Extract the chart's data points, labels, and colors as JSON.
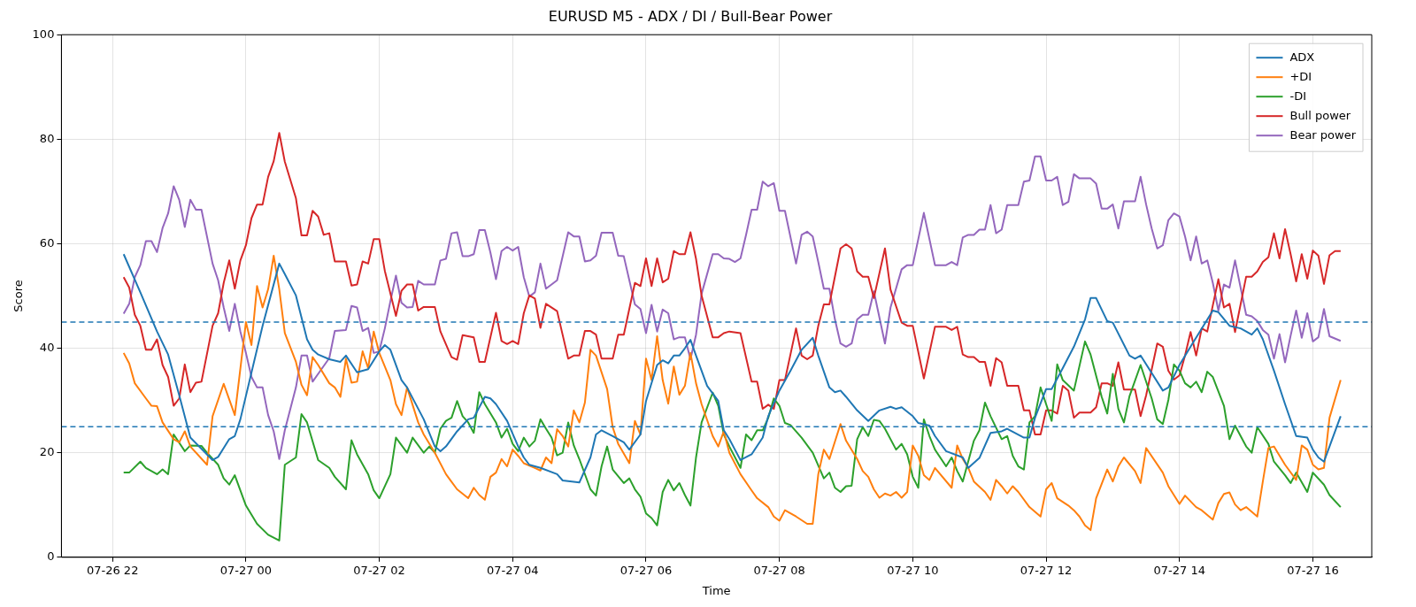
{
  "chart_data": {
    "type": "line",
    "title": "EURUSD M5 - ADX / DI / Bull-Bear Power",
    "xlabel": "Time",
    "ylabel": "Score",
    "xlim": [
      "--07-26T21:14",
      "--07-27T16:53"
    ],
    "xticks": [
      {
        "value": "--07-26T22:00",
        "label": "07-26 22"
      },
      {
        "value": "--07-27T00:00",
        "label": "07-27 00"
      },
      {
        "value": "--07-27T02:00",
        "label": "07-27 02"
      },
      {
        "value": "--07-27T04:00",
        "label": "07-27 04"
      },
      {
        "value": "--07-27T06:00",
        "label": "07-27 06"
      },
      {
        "value": "--07-27T08:00",
        "label": "07-27 08"
      },
      {
        "value": "--07-27T10:00",
        "label": "07-27 10"
      },
      {
        "value": "--07-27T12:00",
        "label": "07-27 12"
      },
      {
        "value": "--07-27T14:00",
        "label": "07-27 14"
      },
      {
        "value": "--07-27T16:00",
        "label": "07-27 16"
      }
    ],
    "ylim": [
      0,
      100
    ],
    "yticks": [
      0,
      20,
      40,
      60,
      80,
      100
    ],
    "grid": true,
    "legend": "top right",
    "ref_lines": [
      {
        "axis": "y",
        "value": 45,
        "color": "#1f77b4",
        "line_style": "dashed"
      },
      {
        "axis": "y",
        "value": 25,
        "color": "#1f77b4",
        "line_style": "dashed"
      }
    ],
    "series": [
      {
        "name": "ADX",
        "color": "#1f77b4",
        "x": [
          "--07-26T22:10",
          "--07-26T22:25",
          "--07-26T22:40",
          "--07-26T22:50",
          "--07-26T23:00",
          "--07-26T23:10",
          "--07-26T23:30",
          "--07-26T23:35",
          "--07-26T23:45",
          "--07-26T23:50",
          "--07-26T23:55",
          "--07-27T00:15",
          "--07-27T00:30",
          "--07-27T00:35",
          "--07-27T00:45",
          "--07-27T00:55",
          "--07-27T01:00",
          "--07-27T01:05",
          "--07-27T01:15",
          "--07-27T01:25",
          "--07-27T01:30",
          "--07-27T01:40",
          "--07-27T01:50",
          "--07-27T02:00",
          "--07-27T02:05",
          "--07-27T02:10",
          "--07-27T02:20",
          "--07-27T02:25",
          "--07-27T02:40",
          "--07-27T02:50",
          "--07-27T02:55",
          "--07-27T03:00",
          "--07-27T03:10",
          "--07-27T03:20",
          "--07-27T03:25",
          "--07-27T03:35",
          "--07-27T03:40",
          "--07-27T03:45",
          "--07-27T03:55",
          "--07-27T04:05",
          "--07-27T04:10",
          "--07-27T04:15",
          "--07-27T04:25",
          "--07-27T04:40",
          "--07-27T04:45",
          "--07-27T05:00",
          "--07-27T05:10",
          "--07-27T05:15",
          "--07-27T05:20",
          "--07-27T05:30",
          "--07-27T05:40",
          "--07-27T05:45",
          "--07-27T05:55",
          "--07-27T06:00",
          "--07-27T06:10",
          "--07-27T06:15",
          "--07-27T06:20",
          "--07-27T06:25",
          "--07-27T06:30",
          "--07-27T06:35",
          "--07-27T06:40",
          "--07-27T06:45",
          "--07-27T06:55",
          "--07-27T07:05",
          "--07-27T07:10",
          "--07-27T07:15",
          "--07-27T07:20",
          "--07-27T07:25",
          "--07-27T07:35",
          "--07-27T07:45",
          "--07-27T07:50",
          "--07-27T08:00",
          "--07-27T08:10",
          "--07-27T08:20",
          "--07-27T08:30",
          "--07-27T08:35",
          "--07-27T08:45",
          "--07-27T08:50",
          "--07-27T08:55",
          "--07-27T09:00",
          "--07-27T09:10",
          "--07-27T09:20",
          "--07-27T09:30",
          "--07-27T09:40",
          "--07-27T09:45",
          "--07-27T09:50",
          "--07-27T10:00",
          "--07-27T10:05",
          "--07-27T10:15",
          "--07-27T10:20",
          "--07-27T10:30",
          "--07-27T10:45",
          "--07-27T10:50",
          "--07-27T11:00",
          "--07-27T11:10",
          "--07-27T11:20",
          "--07-27T11:25",
          "--07-27T11:40",
          "--07-27T11:45",
          "--07-27T11:50",
          "--07-27T12:00",
          "--07-27T12:05",
          "--07-27T12:15",
          "--07-27T12:25",
          "--07-27T12:35",
          "--07-27T12:40",
          "--07-27T12:45",
          "--07-27T12:55",
          "--07-27T13:00",
          "--07-27T13:15",
          "--07-27T13:20",
          "--07-27T13:25",
          "--07-27T13:45",
          "--07-27T13:50",
          "--07-27T14:00",
          "--07-27T14:10",
          "--07-27T14:30",
          "--07-27T14:35",
          "--07-27T14:45",
          "--07-27T14:55",
          "--07-27T15:05",
          "--07-27T15:10",
          "--07-27T15:15",
          "--07-27T15:25",
          "--07-27T15:35",
          "--07-27T15:45",
          "--07-27T15:55",
          "--07-27T16:00",
          "--07-27T16:05",
          "--07-27T16:10",
          "--07-27T16:15",
          "--07-27T16:25"
        ],
        "values": [
          58.0,
          50.7,
          43.2,
          38.8,
          31.0,
          22.9,
          18.6,
          19.2,
          22.6,
          23.2,
          26.4,
          44.3,
          56.2,
          54.2,
          50.1,
          41.7,
          39.7,
          38.8,
          37.9,
          37.4,
          38.6,
          35.4,
          36.0,
          39.4,
          40.6,
          39.7,
          33.9,
          32.5,
          26.4,
          21.2,
          20.3,
          21.2,
          24.1,
          26.4,
          26.7,
          30.7,
          30.4,
          29.3,
          26.1,
          21.2,
          19.1,
          17.7,
          17.1,
          15.9,
          14.7,
          14.3,
          19.1,
          23.5,
          24.3,
          23.2,
          22.0,
          20.6,
          23.5,
          29.9,
          36.8,
          37.7,
          37.1,
          38.6,
          38.6,
          40.0,
          41.6,
          38.6,
          32.8,
          29.9,
          24.3,
          22.6,
          20.6,
          18.6,
          19.7,
          22.9,
          27.0,
          31.9,
          35.7,
          39.7,
          42.0,
          38.6,
          32.5,
          31.6,
          31.9,
          30.7,
          28.1,
          26.1,
          28.1,
          28.8,
          28.4,
          28.7,
          27.0,
          25.7,
          25.2,
          23.2,
          20.3,
          19.1,
          17.1,
          19.0,
          23.8,
          24.1,
          24.6,
          22.9,
          22.9,
          26.7,
          32.2,
          32.2,
          36.2,
          40.3,
          45.5,
          49.6,
          49.6,
          45.2,
          44.9,
          38.6,
          38.0,
          38.6,
          31.9,
          32.5,
          36.8,
          40.3,
          47.2,
          46.9,
          44.3,
          43.8,
          42.6,
          43.8,
          41.7,
          35.7,
          29.3,
          23.2,
          22.9,
          20.6,
          19.1,
          18.3,
          21.2,
          27.0
        ]
      },
      {
        "name": "+DI",
        "color": "#ff7f0e",
        "x": [
          "--07-26T22:10",
          "--07-26T22:15",
          "--07-26T22:20",
          "--07-26T22:30",
          "--07-26T22:35",
          "--07-26T22:40",
          "--07-26T22:45",
          "--07-26T22:55",
          "--07-26T23:00",
          "--07-26T23:05",
          "--07-26T23:10",
          "--07-26T23:25",
          "--07-26T23:30",
          "--07-26T23:40",
          "--07-26T23:50",
          "--07-27T00:00",
          "--07-27T00:05",
          "--07-27T00:10",
          "--07-27T00:15",
          "--07-27T00:20",
          "--07-27T00:25",
          "--07-27T00:30",
          "--07-27T00:35",
          "--07-27T00:45",
          "--07-27T00:50",
          "--07-27T00:55",
          "--07-27T01:00",
          "--07-27T01:05",
          "--07-27T01:15",
          "--07-27T01:20",
          "--07-27T01:25",
          "--07-27T01:30",
          "--07-27T01:35",
          "--07-27T01:40",
          "--07-27T01:45",
          "--07-27T01:50",
          "--07-27T01:55",
          "--07-27T02:00",
          "--07-27T02:10",
          "--07-27T02:15",
          "--07-27T02:20",
          "--07-27T02:25",
          "--07-27T02:35",
          "--07-27T02:40",
          "--07-27T02:50",
          "--07-27T03:00",
          "--07-27T03:10",
          "--07-27T03:20",
          "--07-27T03:25",
          "--07-27T03:30",
          "--07-27T03:35",
          "--07-27T03:40",
          "--07-27T03:45",
          "--07-27T03:50",
          "--07-27T03:55",
          "--07-27T04:00",
          "--07-27T04:05",
          "--07-27T04:10",
          "--07-27T04:20",
          "--07-27T04:25",
          "--07-27T04:30",
          "--07-27T04:35",
          "--07-27T04:40",
          "--07-27T04:45",
          "--07-27T04:50",
          "--07-27T04:55",
          "--07-27T05:00",
          "--07-27T05:05",
          "--07-27T05:10",
          "--07-27T05:15",
          "--07-27T05:25",
          "--07-27T05:30",
          "--07-27T05:35",
          "--07-27T05:45",
          "--07-27T05:50",
          "--07-27T05:55",
          "--07-27T06:00",
          "--07-27T06:05",
          "--07-27T06:10",
          "--07-27T06:15",
          "--07-27T06:20",
          "--07-27T06:25",
          "--07-27T06:30",
          "--07-27T06:35",
          "--07-27T06:40",
          "--07-27T06:45",
          "--07-27T06:50",
          "--07-27T07:00",
          "--07-27T07:05",
          "--07-27T07:10",
          "--07-27T07:15",
          "--07-27T07:25",
          "--07-27T07:35",
          "--07-27T07:40",
          "--07-27T07:50",
          "--07-27T07:55",
          "--07-27T08:00",
          "--07-27T08:05",
          "--07-27T08:15",
          "--07-27T08:25",
          "--07-27T08:30",
          "--07-27T08:35",
          "--07-27T08:40",
          "--07-27T08:45",
          "--07-27T08:55",
          "--07-27T09:00",
          "--07-27T09:10",
          "--07-27T09:15",
          "--07-27T09:20",
          "--07-27T09:25",
          "--07-27T09:30",
          "--07-27T09:35",
          "--07-27T09:40",
          "--07-27T09:45",
          "--07-27T09:50",
          "--07-27T09:55",
          "--07-27T10:00",
          "--07-27T10:05",
          "--07-27T10:10",
          "--07-27T10:15",
          "--07-27T10:20",
          "--07-27T10:35",
          "--07-27T10:40",
          "--07-27T10:45",
          "--07-27T10:50",
          "--07-27T10:55",
          "--07-27T11:05",
          "--07-27T11:10",
          "--07-27T11:15",
          "--07-27T11:20",
          "--07-27T11:25",
          "--07-27T11:30",
          "--07-27T11:35",
          "--07-27T11:45",
          "--07-27T11:55",
          "--07-27T12:00",
          "--07-27T12:05",
          "--07-27T12:10",
          "--07-27T12:20",
          "--07-27T12:25",
          "--07-27T12:30",
          "--07-27T12:35",
          "--07-27T12:40",
          "--07-27T12:45",
          "--07-27T12:55",
          "--07-27T13:00",
          "--07-27T13:05",
          "--07-27T13:10",
          "--07-27T13:20",
          "--07-27T13:25",
          "--07-27T13:30",
          "--07-27T13:45",
          "--07-27T13:50",
          "--07-27T14:00",
          "--07-27T14:05",
          "--07-27T14:15",
          "--07-27T14:20",
          "--07-27T14:30",
          "--07-27T14:35",
          "--07-27T14:40",
          "--07-27T14:45",
          "--07-27T14:50",
          "--07-27T14:55",
          "--07-27T15:00",
          "--07-27T15:10",
          "--07-27T15:15",
          "--07-27T15:20",
          "--07-27T15:25",
          "--07-27T15:35",
          "--07-27T15:45",
          "--07-27T15:50",
          "--07-27T15:55",
          "--07-27T16:00",
          "--07-27T16:05",
          "--07-27T16:10",
          "--07-27T16:15",
          "--07-27T16:25"
        ],
        "values": [
          39.1,
          37.1,
          33.3,
          30.4,
          29.0,
          28.9,
          25.8,
          22.6,
          22.0,
          24.1,
          21.2,
          17.7,
          27.0,
          33.2,
          27.2,
          45.0,
          40.6,
          51.9,
          47.8,
          51.3,
          57.7,
          51.3,
          42.9,
          37.4,
          33.0,
          31.0,
          38.3,
          36.8,
          33.3,
          32.5,
          30.7,
          38.0,
          33.4,
          33.6,
          39.4,
          36.2,
          43.2,
          39.1,
          33.9,
          29.3,
          27.2,
          32.5,
          25.8,
          23.5,
          20.0,
          15.9,
          13.0,
          11.3,
          13.3,
          11.9,
          11.0,
          15.4,
          16.2,
          18.8,
          17.4,
          20.6,
          19.4,
          18.0,
          17.1,
          16.6,
          19.1,
          18.0,
          24.5,
          23.2,
          21.2,
          28.1,
          25.8,
          29.6,
          39.7,
          38.6,
          32.2,
          24.9,
          21.7,
          18.0,
          26.1,
          23.5,
          38.0,
          33.9,
          42.3,
          33.9,
          29.4,
          36.5,
          31.1,
          32.8,
          39.1,
          33.3,
          29.3,
          23.2,
          21.2,
          24.1,
          20.0,
          15.9,
          12.8,
          11.3,
          9.6,
          7.8,
          7.0,
          9.0,
          7.8,
          6.4,
          6.4,
          15.9,
          20.6,
          18.8,
          25.5,
          22.3,
          18.8,
          16.5,
          15.4,
          13.0,
          11.4,
          12.2,
          11.8,
          12.5,
          11.4,
          12.5,
          21.4,
          19.4,
          15.7,
          14.8,
          17.1,
          13.3,
          21.4,
          18.8,
          17.1,
          14.5,
          12.5,
          11.0,
          14.8,
          13.6,
          12.2,
          13.6,
          12.5,
          9.6,
          7.8,
          13.0,
          14.2,
          11.3,
          9.9,
          9.0,
          7.8,
          6.1,
          5.2,
          11.3,
          16.8,
          14.5,
          17.4,
          19.1,
          16.5,
          14.2,
          20.9,
          16.2,
          13.6,
          10.2,
          11.8,
          9.6,
          9.0,
          7.2,
          10.4,
          12.1,
          12.4,
          10.1,
          9.0,
          9.6,
          7.8,
          14.5,
          20.9,
          21.2,
          17.7,
          14.8,
          21.4,
          20.6,
          17.7,
          16.8,
          17.1,
          26.7,
          33.9
        ]
      },
      {
        "name": "-DI",
        "color": "#2ca02c",
        "x": [
          "--07-26T22:10",
          "--07-26T22:15",
          "--07-26T22:25",
          "--07-26T22:30",
          "--07-26T22:40",
          "--07-26T22:45",
          "--07-26T22:50",
          "--07-26T22:55",
          "--07-26T23:05",
          "--07-26T23:10",
          "--07-26T23:20",
          "--07-26T23:25",
          "--07-26T23:35",
          "--07-26T23:40",
          "--07-26T23:45",
          "--07-26T23:50",
          "--07-27T00:00",
          "--07-27T00:10",
          "--07-27T00:20",
          "--07-27T00:30",
          "--07-27T00:35",
          "--07-27T00:45",
          "--07-27T00:50",
          "--07-27T00:55",
          "--07-27T01:05",
          "--07-27T01:15",
          "--07-27T01:20",
          "--07-27T01:30",
          "--07-27T01:35",
          "--07-27T01:40",
          "--07-27T01:50",
          "--07-27T01:55",
          "--07-27T02:00",
          "--07-27T02:10",
          "--07-27T02:15",
          "--07-27T02:25",
          "--07-27T02:30",
          "--07-27T02:40",
          "--07-27T02:45",
          "--07-27T02:50",
          "--07-27T02:55",
          "--07-27T03:00",
          "--07-27T03:05",
          "--07-27T03:10",
          "--07-27T03:15",
          "--07-27T03:20",
          "--07-27T03:25",
          "--07-27T03:30",
          "--07-27T03:35",
          "--07-27T03:45",
          "--07-27T03:50",
          "--07-27T03:55",
          "--07-27T04:00",
          "--07-27T04:05",
          "--07-27T04:10",
          "--07-27T04:15",
          "--07-27T04:20",
          "--07-27T04:25",
          "--07-27T04:30",
          "--07-27T04:35",
          "--07-27T04:40",
          "--07-27T04:45",
          "--07-27T04:50",
          "--07-27T04:55",
          "--07-27T05:00",
          "--07-27T05:10",
          "--07-27T05:15",
          "--07-27T05:20",
          "--07-27T05:25",
          "--07-27T05:30",
          "--07-27T05:40",
          "--07-27T05:45",
          "--07-27T05:50",
          "--07-27T05:55",
          "--07-27T06:00",
          "--07-27T06:05",
          "--07-27T06:10",
          "--07-27T06:15",
          "--07-27T06:20",
          "--07-27T06:25",
          "--07-27T06:30",
          "--07-27T06:35",
          "--07-27T06:40",
          "--07-27T06:45",
          "--07-27T06:50",
          "--07-27T07:00",
          "--07-27T07:05",
          "--07-27T07:10",
          "--07-27T07:15",
          "--07-27T07:25",
          "--07-27T07:30",
          "--07-27T07:35",
          "--07-27T07:40",
          "--07-27T07:45",
          "--07-27T07:50",
          "--07-27T07:55",
          "--07-27T08:00",
          "--07-27T08:05",
          "--07-27T08:10",
          "--07-27T08:20",
          "--07-27T08:30",
          "--07-27T08:40",
          "--07-27T08:45",
          "--07-27T08:50",
          "--07-27T08:55",
          "--07-27T09:00",
          "--07-27T09:05",
          "--07-27T09:10",
          "--07-27T09:15",
          "--07-27T09:20",
          "--07-27T09:25",
          "--07-27T09:30",
          "--07-27T09:35",
          "--07-27T09:45",
          "--07-27T09:50",
          "--07-27T09:55",
          "--07-27T10:00",
          "--07-27T10:05",
          "--07-27T10:10",
          "--07-27T10:15",
          "--07-27T10:20",
          "--07-27T10:30",
          "--07-27T10:35",
          "--07-27T10:40",
          "--07-27T10:45",
          "--07-27T10:55",
          "--07-27T11:00",
          "--07-27T11:05",
          "--07-27T11:10",
          "--07-27T11:20",
          "--07-27T11:25",
          "--07-27T11:30",
          "--07-27T11:35",
          "--07-27T11:40",
          "--07-27T11:45",
          "--07-27T11:50",
          "--07-27T11:55",
          "--07-27T12:00",
          "--07-27T12:05",
          "--07-27T12:10",
          "--07-27T12:15",
          "--07-27T12:25",
          "--07-27T12:35",
          "--07-27T12:40",
          "--07-27T12:50",
          "--07-27T12:55",
          "--07-27T13:00",
          "--07-27T13:05",
          "--07-27T13:10",
          "--07-27T13:15",
          "--07-27T13:25",
          "--07-27T13:35",
          "--07-27T13:40",
          "--07-27T13:45",
          "--07-27T13:50",
          "--07-27T13:55",
          "--07-27T14:00",
          "--07-27T14:05",
          "--07-27T14:10",
          "--07-27T14:15",
          "--07-27T14:20",
          "--07-27T14:25",
          "--07-27T14:30",
          "--07-27T14:40",
          "--07-27T14:45",
          "--07-27T14:50",
          "--07-27T15:00",
          "--07-27T15:05",
          "--07-27T15:10",
          "--07-27T15:20",
          "--07-27T15:25",
          "--07-27T15:35",
          "--07-27T15:40",
          "--07-27T15:45",
          "--07-27T15:55",
          "--07-27T16:00",
          "--07-27T16:10",
          "--07-27T16:15",
          "--07-27T16:25"
        ],
        "values": [
          16.2,
          16.2,
          18.3,
          17.1,
          15.9,
          16.8,
          15.9,
          23.5,
          20.3,
          21.4,
          21.3,
          20.0,
          17.7,
          15.1,
          13.9,
          15.7,
          9.9,
          6.4,
          4.3,
          3.2,
          17.7,
          19.1,
          27.4,
          25.8,
          18.6,
          17.1,
          15.4,
          13.0,
          22.4,
          19.7,
          15.9,
          12.8,
          11.3,
          15.9,
          22.9,
          20.0,
          22.9,
          20.0,
          21.2,
          20.0,
          24.6,
          26.1,
          26.7,
          29.9,
          27.0,
          25.8,
          23.8,
          31.6,
          29.3,
          25.8,
          22.9,
          24.6,
          21.7,
          20.3,
          22.9,
          21.2,
          22.3,
          26.4,
          24.6,
          22.9,
          19.5,
          20.0,
          25.8,
          21.4,
          18.8,
          13.0,
          11.8,
          17.4,
          21.2,
          16.8,
          14.2,
          15.1,
          13.0,
          11.6,
          8.4,
          7.5,
          6.1,
          12.5,
          14.8,
          12.8,
          14.2,
          11.9,
          9.9,
          19.1,
          25.8,
          31.5,
          29.0,
          23.5,
          21.2,
          17.1,
          23.5,
          22.4,
          24.3,
          24.3,
          26.7,
          30.4,
          29.0,
          25.7,
          25.3,
          22.9,
          20.0,
          15.1,
          16.2,
          13.3,
          12.5,
          13.6,
          13.7,
          22.6,
          24.9,
          23.2,
          26.3,
          26.1,
          24.6,
          20.6,
          21.7,
          19.7,
          15.4,
          13.3,
          26.4,
          23.2,
          20.6,
          17.4,
          19.1,
          16.5,
          14.5,
          22.3,
          24.3,
          29.6,
          27.0,
          22.6,
          23.2,
          19.4,
          17.4,
          16.8,
          25.8,
          27.0,
          32.5,
          29.3,
          26.1,
          36.9,
          33.9,
          31.9,
          41.3,
          38.8,
          30.7,
          27.5,
          35.1,
          28.4,
          25.8,
          30.8,
          36.8,
          30.4,
          26.4,
          25.5,
          30.1,
          36.9,
          35.7,
          33.3,
          32.5,
          33.6,
          31.6,
          35.5,
          34.5,
          29.0,
          22.6,
          25.2,
          21.2,
          20.0,
          24.9,
          21.7,
          18.3,
          15.7,
          14.2,
          16.2,
          12.5,
          16.2,
          13.9,
          11.9,
          9.6
        ]
      },
      {
        "name": "Bull power",
        "color": "#d62728",
        "x": [
          "--07-26T22:10",
          "--07-26T22:15",
          "--07-26T22:20",
          "--07-26T22:25",
          "--07-26T22:30",
          "--07-26T22:35",
          "--07-26T22:40",
          "--07-26T22:45",
          "--07-26T22:50",
          "--07-26T22:55",
          "--07-26T23:00",
          "--07-26T23:05",
          "--07-26T23:10",
          "--07-26T23:15",
          "--07-26T23:20",
          "--07-26T23:30",
          "--07-26T23:35",
          "--07-26T23:40",
          "--07-26T23:45",
          "--07-26T23:50",
          "--07-26T23:55",
          "--07-27T00:00",
          "--07-27T00:05",
          "--07-27T00:10",
          "--07-27T00:15",
          "--07-27T00:20",
          "--07-27T00:25",
          "--07-27T00:30",
          "--07-27T00:35",
          "--07-27T00:45",
          "--07-27T00:50",
          "--07-27T00:55",
          "--07-27T01:00",
          "--07-27T01:05",
          "--07-27T01:10",
          "--07-27T01:15",
          "--07-27T01:20",
          "--07-27T01:30",
          "--07-27T01:35",
          "--07-27T01:40",
          "--07-27T01:45",
          "--07-27T01:50",
          "--07-27T01:55",
          "--07-27T02:00",
          "--07-27T02:05",
          "--07-27T02:15",
          "--07-27T02:20",
          "--07-27T02:25",
          "--07-27T02:30",
          "--07-27T02:35",
          "--07-27T02:40",
          "--07-27T02:50",
          "--07-27T02:55",
          "--07-27T03:05",
          "--07-27T03:10",
          "--07-27T03:15",
          "--07-27T03:25",
          "--07-27T03:30",
          "--07-27T03:35",
          "--07-27T03:45",
          "--07-27T03:50",
          "--07-27T03:55",
          "--07-27T04:00",
          "--07-27T04:05",
          "--07-27T04:10",
          "--07-27T04:15",
          "--07-27T04:20",
          "--07-27T04:25",
          "--07-27T04:30",
          "--07-27T04:40",
          "--07-27T04:50",
          "--07-27T04:55",
          "--07-27T05:00",
          "--07-27T05:05",
          "--07-27T05:10",
          "--07-27T05:15",
          "--07-27T05:20",
          "--07-27T05:30",
          "--07-27T05:35",
          "--07-27T05:40",
          "--07-27T05:50",
          "--07-27T05:55",
          "--07-27T06:00",
          "--07-27T06:05",
          "--07-27T06:10",
          "--07-27T06:15",
          "--07-27T06:20",
          "--07-27T06:25",
          "--07-27T06:30",
          "--07-27T06:35",
          "--07-27T06:40",
          "--07-27T06:45",
          "--07-27T06:50",
          "--07-27T07:00",
          "--07-27T07:05",
          "--07-27T07:10",
          "--07-27T07:15",
          "--07-27T07:25",
          "--07-27T07:35",
          "--07-27T07:40",
          "--07-27T07:45",
          "--07-27T07:50",
          "--07-27T07:55",
          "--07-27T08:00",
          "--07-27T08:05",
          "--07-27T08:15",
          "--07-27T08:20",
          "--07-27T08:25",
          "--07-27T08:30",
          "--07-27T08:35",
          "--07-27T08:40",
          "--07-27T08:45",
          "--07-27T08:55",
          "--07-27T09:00",
          "--07-27T09:05",
          "--07-27T09:10",
          "--07-27T09:15",
          "--07-27T09:20",
          "--07-27T09:25",
          "--07-27T09:35",
          "--07-27T09:40",
          "--07-27T09:50",
          "--07-27T09:55",
          "--07-27T10:00",
          "--07-27T10:10",
          "--07-27T10:20",
          "--07-27T10:30",
          "--07-27T10:35",
          "--07-27T10:40",
          "--07-27T10:45",
          "--07-27T10:50",
          "--07-27T10:55",
          "--07-27T11:00",
          "--07-27T11:05",
          "--07-27T11:10",
          "--07-27T11:15",
          "--07-27T11:20",
          "--07-27T11:25",
          "--07-27T11:35",
          "--07-27T11:40",
          "--07-27T11:45",
          "--07-27T11:50",
          "--07-27T11:55",
          "--07-27T12:00",
          "--07-27T12:05",
          "--07-27T12:10",
          "--07-27T12:15",
          "--07-27T12:20",
          "--07-27T12:25",
          "--07-27T12:30",
          "--07-27T12:40",
          "--07-27T12:45",
          "--07-27T12:50",
          "--07-27T12:55",
          "--07-27T13:00",
          "--07-27T13:05",
          "--07-27T13:10",
          "--07-27T13:20",
          "--07-27T13:25",
          "--07-27T13:30",
          "--07-27T13:40",
          "--07-27T13:45",
          "--07-27T13:50",
          "--07-27T13:55",
          "--07-27T14:00",
          "--07-27T14:05",
          "--07-27T14:10",
          "--07-27T14:15",
          "--07-27T14:20",
          "--07-27T14:25",
          "--07-27T14:35",
          "--07-27T14:40",
          "--07-27T14:45",
          "--07-27T14:50",
          "--07-27T15:00",
          "--07-27T15:05",
          "--07-27T15:10",
          "--07-27T15:15",
          "--07-27T15:20",
          "--07-27T15:25",
          "--07-27T15:30",
          "--07-27T15:35",
          "--07-27T15:40",
          "--07-27T15:45",
          "--07-27T15:50",
          "--07-27T15:55",
          "--07-27T16:00",
          "--07-27T16:05",
          "--07-27T16:10",
          "--07-27T16:15",
          "--07-27T16:20",
          "--07-27T16:25"
        ],
        "values": [
          53.6,
          51.6,
          46.4,
          44.3,
          39.7,
          39.7,
          41.7,
          36.8,
          34.5,
          29.0,
          30.4,
          36.9,
          31.6,
          33.4,
          33.6,
          44.3,
          46.7,
          52.5,
          56.8,
          51.4,
          56.8,
          59.7,
          64.9,
          67.5,
          67.5,
          72.8,
          75.8,
          81.2,
          75.7,
          68.7,
          61.6,
          61.6,
          66.3,
          65.2,
          61.7,
          62.0,
          56.6,
          56.6,
          52.0,
          52.2,
          56.6,
          56.2,
          60.9,
          60.9,
          54.8,
          46.2,
          51.0,
          52.2,
          52.2,
          47.2,
          47.9,
          47.9,
          43.2,
          38.3,
          37.8,
          42.5,
          42.1,
          37.4,
          37.4,
          46.8,
          41.4,
          40.8,
          41.4,
          40.8,
          46.7,
          50.1,
          49.5,
          43.9,
          48.5,
          47.1,
          38.0,
          38.6,
          38.6,
          43.3,
          43.3,
          42.6,
          38.0,
          38.0,
          42.6,
          42.6,
          52.5,
          51.9,
          57.2,
          51.9,
          57.2,
          52.6,
          53.3,
          58.6,
          58.0,
          58.0,
          62.2,
          57.1,
          50.1,
          42.1,
          42.1,
          42.9,
          43.2,
          42.9,
          33.6,
          33.6,
          28.4,
          29.2,
          28.4,
          33.9,
          33.9,
          43.8,
          38.6,
          37.9,
          38.6,
          44.3,
          48.4,
          48.4,
          59.1,
          59.9,
          59.1,
          54.7,
          53.7,
          53.7,
          49.6,
          59.1,
          51.2,
          44.9,
          44.3,
          44.3,
          34.2,
          44.1,
          44.1,
          43.5,
          44.1,
          38.8,
          38.3,
          38.3,
          37.4,
          37.4,
          32.8,
          38.1,
          37.3,
          32.8,
          32.8,
          28.1,
          28.1,
          23.5,
          23.5,
          28.1,
          28.1,
          27.5,
          32.8,
          31.9,
          26.7,
          27.7,
          27.7,
          28.7,
          33.3,
          33.3,
          32.8,
          37.3,
          32.1,
          32.1,
          27.0,
          31.0,
          40.9,
          40.3,
          35.7,
          34.0,
          34.8,
          38.6,
          43.1,
          38.6,
          43.8,
          43.2,
          53.2,
          47.8,
          48.5,
          43.1,
          53.7,
          53.7,
          54.7,
          56.5,
          57.4,
          62.0,
          57.2,
          62.8,
          58.0,
          52.8,
          58.0,
          53.3,
          58.7,
          57.7,
          52.3,
          57.8,
          58.6,
          58.6
        ]
      },
      {
        "name": "Bear power",
        "color": "#9467bd",
        "x": [
          "--07-26T22:10",
          "--07-26T22:15",
          "--07-26T22:20",
          "--07-26T22:25",
          "--07-26T22:30",
          "--07-26T22:35",
          "--07-26T22:40",
          "--07-26T22:45",
          "--07-26T22:50",
          "--07-26T22:55",
          "--07-26T23:00",
          "--07-26T23:05",
          "--07-26T23:10",
          "--07-26T23:15",
          "--07-26T23:20",
          "--07-26T23:30",
          "--07-26T23:35",
          "--07-26T23:40",
          "--07-26T23:45",
          "--07-26T23:50",
          "--07-26T23:55",
          "--07-27T00:00",
          "--07-27T00:05",
          "--07-27T00:10",
          "--07-27T00:15",
          "--07-27T00:20",
          "--07-27T00:25",
          "--07-27T00:30",
          "--07-27T00:35",
          "--07-27T00:45",
          "--07-27T00:50",
          "--07-27T00:55",
          "--07-27T01:00",
          "--07-27T01:05",
          "--07-27T01:15",
          "--07-27T01:20",
          "--07-27T01:30",
          "--07-27T01:35",
          "--07-27T01:40",
          "--07-27T01:45",
          "--07-27T01:50",
          "--07-27T01:55",
          "--07-27T02:00",
          "--07-27T02:05",
          "--07-27T02:10",
          "--07-27T02:15",
          "--07-27T02:20",
          "--07-27T02:25",
          "--07-27T02:30",
          "--07-27T02:35",
          "--07-27T02:40",
          "--07-27T02:50",
          "--07-27T02:55",
          "--07-27T03:00",
          "--07-27T03:05",
          "--07-27T03:10",
          "--07-27T03:15",
          "--07-27T03:20",
          "--07-27T03:25",
          "--07-27T03:30",
          "--07-27T03:35",
          "--07-27T03:40",
          "--07-27T03:45",
          "--07-27T03:50",
          "--07-27T03:55",
          "--07-27T04:00",
          "--07-27T04:05",
          "--07-27T04:10",
          "--07-27T04:15",
          "--07-27T04:20",
          "--07-27T04:25",
          "--07-27T04:30",
          "--07-27T04:40",
          "--07-27T04:50",
          "--07-27T04:55",
          "--07-27T05:00",
          "--07-27T05:05",
          "--07-27T05:10",
          "--07-27T05:15",
          "--07-27T05:20",
          "--07-27T05:30",
          "--07-27T05:35",
          "--07-27T05:40",
          "--07-27T05:50",
          "--07-27T05:55",
          "--07-27T06:00",
          "--07-27T06:05",
          "--07-27T06:10",
          "--07-27T06:15",
          "--07-27T06:20",
          "--07-27T06:25",
          "--07-27T06:30",
          "--07-27T06:35",
          "--07-27T06:40",
          "--07-27T06:45",
          "--07-27T06:50",
          "--07-27T07:00",
          "--07-27T07:05",
          "--07-27T07:10",
          "--07-27T07:15",
          "--07-27T07:20",
          "--07-27T07:25",
          "--07-27T07:30",
          "--07-27T07:35",
          "--07-27T07:40",
          "--07-27T07:45",
          "--07-27T07:50",
          "--07-27T07:55",
          "--07-27T08:00",
          "--07-27T08:05",
          "--07-27T08:15",
          "--07-27T08:20",
          "--07-27T08:25",
          "--07-27T08:30",
          "--07-27T08:35",
          "--07-27T08:40",
          "--07-27T08:45",
          "--07-27T08:50",
          "--07-27T08:55",
          "--07-27T09:00",
          "--07-27T09:05",
          "--07-27T09:10",
          "--07-27T09:15",
          "--07-27T09:20",
          "--07-27T09:25",
          "--07-27T09:35",
          "--07-27T09:40",
          "--07-27T09:50",
          "--07-27T09:55",
          "--07-27T10:00",
          "--07-27T10:10",
          "--07-27T10:20",
          "--07-27T10:30",
          "--07-27T10:35",
          "--07-27T10:40",
          "--07-27T10:45",
          "--07-27T10:50",
          "--07-27T10:55",
          "--07-27T11:00",
          "--07-27T11:05",
          "--07-27T11:10",
          "--07-27T11:15",
          "--07-27T11:20",
          "--07-27T11:25",
          "--07-27T11:35",
          "--07-27T11:40",
          "--07-27T11:45",
          "--07-27T11:50",
          "--07-27T11:55",
          "--07-27T12:00",
          "--07-27T12:05",
          "--07-27T12:10",
          "--07-27T12:15",
          "--07-27T12:20",
          "--07-27T12:25",
          "--07-27T12:30",
          "--07-27T12:40",
          "--07-27T12:45",
          "--07-27T12:50",
          "--07-27T12:55",
          "--07-27T13:00",
          "--07-27T13:05",
          "--07-27T13:10",
          "--07-27T13:20",
          "--07-27T13:25",
          "--07-27T13:30",
          "--07-27T13:35",
          "--07-27T13:40",
          "--07-27T13:45",
          "--07-27T13:50",
          "--07-27T13:55",
          "--07-27T14:00",
          "--07-27T14:05",
          "--07-27T14:10",
          "--07-27T14:15",
          "--07-27T14:20",
          "--07-27T14:25",
          "--07-27T14:30",
          "--07-27T14:35",
          "--07-27T14:40",
          "--07-27T14:45",
          "--07-27T14:50",
          "--07-27T15:00",
          "--07-27T15:05",
          "--07-27T15:10",
          "--07-27T15:15",
          "--07-27T15:20",
          "--07-27T15:25",
          "--07-27T15:30",
          "--07-27T15:35",
          "--07-27T15:40",
          "--07-27T15:45",
          "--07-27T15:50",
          "--07-27T15:55",
          "--07-27T16:00",
          "--07-27T16:05",
          "--07-27T16:10",
          "--07-27T16:15",
          "--07-27T16:25"
        ],
        "values": [
          46.6,
          48.5,
          53.6,
          55.9,
          60.5,
          60.5,
          58.4,
          63.0,
          65.8,
          71.0,
          68.4,
          63.2,
          68.4,
          66.5,
          66.5,
          56.2,
          53.0,
          47.8,
          43.3,
          48.5,
          43.2,
          39.1,
          34.5,
          32.5,
          32.5,
          27.2,
          24.1,
          18.8,
          24.3,
          32.5,
          38.6,
          38.6,
          33.6,
          35.1,
          38.1,
          43.3,
          43.5,
          48.1,
          47.8,
          43.3,
          43.9,
          39.1,
          39.4,
          43.8,
          49.0,
          53.9,
          48.7,
          47.8,
          47.9,
          52.9,
          52.2,
          52.2,
          56.8,
          57.1,
          62.0,
          62.2,
          57.6,
          57.6,
          58.0,
          62.6,
          62.6,
          58.3,
          53.2,
          58.6,
          59.4,
          58.7,
          59.4,
          53.6,
          49.9,
          50.7,
          56.2,
          51.4,
          53.0,
          62.2,
          61.4,
          61.4,
          56.6,
          56.8,
          57.7,
          62.1,
          62.1,
          57.7,
          57.6,
          48.4,
          47.5,
          42.9,
          48.3,
          43.2,
          47.4,
          46.7,
          41.7,
          42.1,
          42.1,
          37.9,
          42.6,
          50.4,
          58.0,
          58.0,
          57.2,
          57.1,
          56.5,
          57.2,
          61.7,
          66.5,
          66.5,
          71.9,
          71.0,
          71.6,
          66.3,
          66.3,
          56.2,
          61.7,
          62.3,
          61.4,
          56.5,
          51.4,
          51.4,
          45.5,
          40.9,
          40.3,
          40.9,
          45.5,
          46.4,
          46.4,
          50.9,
          40.9,
          47.8,
          55.1,
          55.9,
          55.9,
          65.9,
          55.9,
          55.9,
          56.5,
          55.9,
          61.2,
          61.7,
          61.7,
          62.7,
          62.7,
          67.4,
          62.0,
          62.7,
          67.4,
          67.4,
          71.9,
          72.1,
          76.7,
          76.7,
          72.1,
          72.1,
          72.8,
          67.4,
          68.0,
          73.3,
          72.5,
          72.5,
          71.5,
          66.7,
          66.7,
          67.5,
          62.9,
          68.1,
          68.1,
          72.8,
          67.5,
          62.9,
          59.1,
          59.7,
          64.5,
          65.8,
          65.2,
          61.4,
          56.8,
          61.4,
          56.2,
          56.8,
          52.5,
          47.2,
          52.2,
          51.6,
          56.8,
          46.4,
          46.1,
          45.2,
          43.5,
          42.6,
          38.0,
          42.7,
          37.3,
          42.4,
          47.2,
          42.0,
          46.7,
          41.3,
          42.1,
          47.5,
          42.3,
          41.4
        ]
      }
    ]
  }
}
